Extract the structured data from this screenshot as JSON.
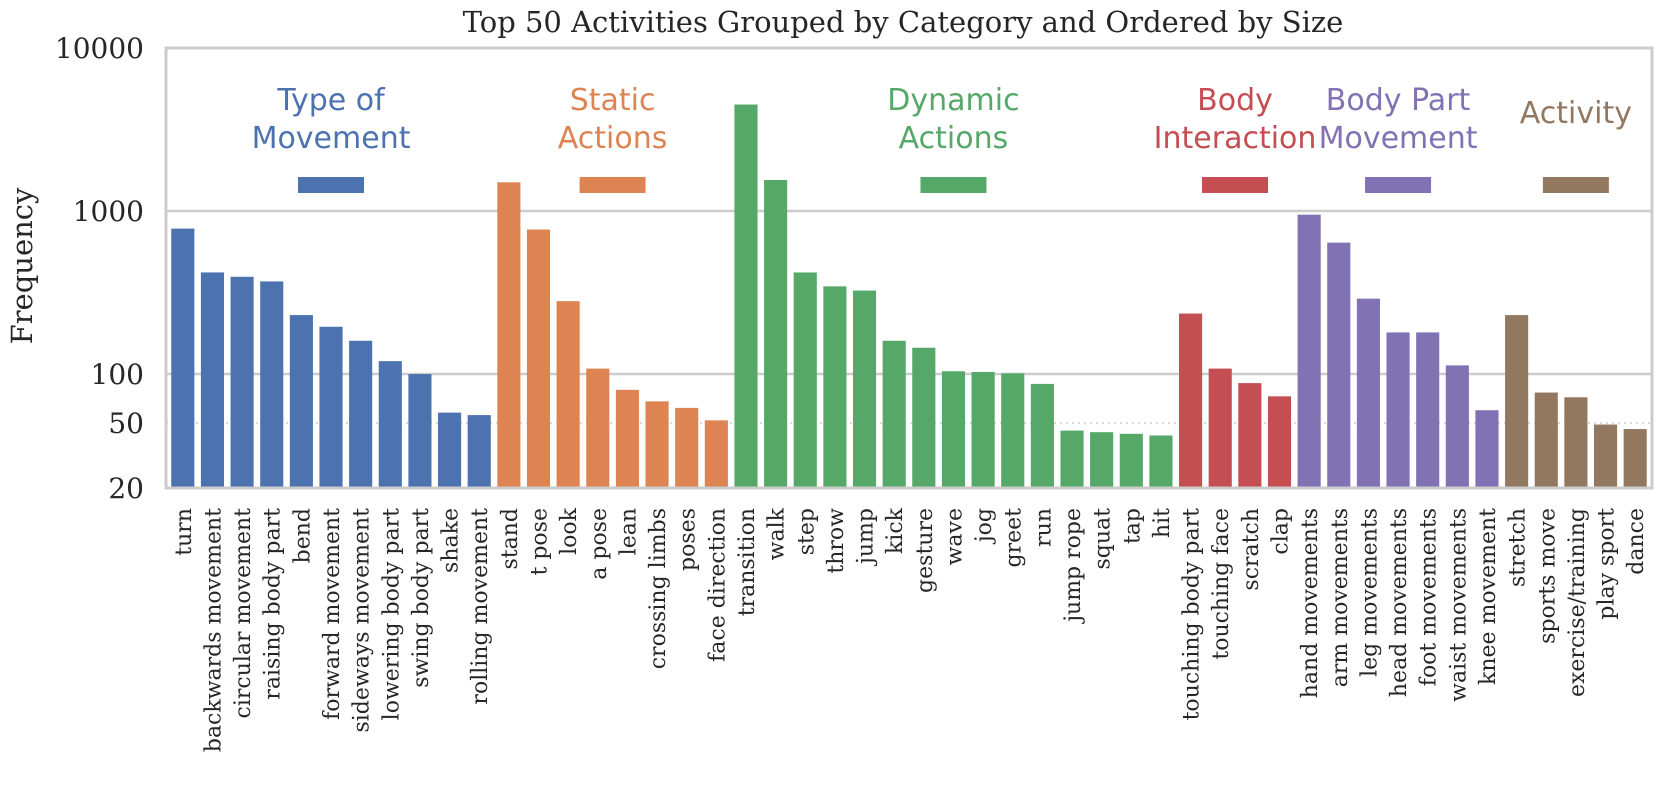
{
  "chart_data": {
    "type": "bar",
    "title": "Top 50 Activities Grouped by Category and Ordered by Size",
    "xlabel": "",
    "ylabel": "Frequency",
    "yscale": "log",
    "ylim": [
      20,
      10000
    ],
    "yticks": [
      {
        "value": 20,
        "label": "20"
      },
      {
        "value": 50,
        "label": "50"
      },
      {
        "value": 100,
        "label": "100"
      },
      {
        "value": 1000,
        "label": "1000"
      },
      {
        "value": 10000,
        "label": "10000"
      }
    ],
    "minor_gridlines": [
      50
    ],
    "grid": true,
    "categories": [
      {
        "name": "Type of Movement",
        "lines": [
          "Type of",
          "Movement"
        ],
        "color": "#4c72b0",
        "items": [
          {
            "label": "turn",
            "value": 780
          },
          {
            "label": "backwards movement",
            "value": 420
          },
          {
            "label": "circular movement",
            "value": 395
          },
          {
            "label": "raising body part",
            "value": 370
          },
          {
            "label": "bend",
            "value": 230
          },
          {
            "label": "forward movement",
            "value": 195
          },
          {
            "label": "sideways movement",
            "value": 160
          },
          {
            "label": "lowering body part",
            "value": 120
          },
          {
            "label": "swing body part",
            "value": 100
          },
          {
            "label": "shake",
            "value": 58
          },
          {
            "label": "rolling movement",
            "value": 56
          }
        ]
      },
      {
        "name": "Static Actions",
        "lines": [
          "Static",
          "Actions"
        ],
        "color": "#dd8452",
        "items": [
          {
            "label": "stand",
            "value": 1500
          },
          {
            "label": "t pose",
            "value": 770
          },
          {
            "label": "look",
            "value": 280
          },
          {
            "label": "a pose",
            "value": 108
          },
          {
            "label": "lean",
            "value": 80
          },
          {
            "label": "crossing limbs",
            "value": 68
          },
          {
            "label": "poses",
            "value": 62
          },
          {
            "label": "face direction",
            "value": 52
          }
        ]
      },
      {
        "name": "Dynamic Actions",
        "lines": [
          "Dynamic",
          "Actions"
        ],
        "color": "#55a868",
        "items": [
          {
            "label": "transition",
            "value": 4500
          },
          {
            "label": "walk",
            "value": 1550
          },
          {
            "label": "step",
            "value": 420
          },
          {
            "label": "throw",
            "value": 345
          },
          {
            "label": "jump",
            "value": 325
          },
          {
            "label": "kick",
            "value": 160
          },
          {
            "label": "gesture",
            "value": 145
          },
          {
            "label": "wave",
            "value": 104
          },
          {
            "label": "jog",
            "value": 103
          },
          {
            "label": "greet",
            "value": 101
          },
          {
            "label": "run",
            "value": 87
          },
          {
            "label": "jump rope",
            "value": 45
          },
          {
            "label": "squat",
            "value": 44
          },
          {
            "label": "tap",
            "value": 43
          },
          {
            "label": "hit",
            "value": 42
          }
        ]
      },
      {
        "name": "Body Interaction",
        "lines": [
          "Body",
          "Interaction"
        ],
        "color": "#c44e52",
        "items": [
          {
            "label": "touching body part",
            "value": 235
          },
          {
            "label": "touching face",
            "value": 108
          },
          {
            "label": "scratch",
            "value": 88
          },
          {
            "label": "clap",
            "value": 73
          }
        ]
      },
      {
        "name": "Body Part Movement",
        "lines": [
          "Body Part",
          "Movement"
        ],
        "color": "#8172b3",
        "items": [
          {
            "label": "hand movements",
            "value": 950
          },
          {
            "label": "arm movements",
            "value": 640
          },
          {
            "label": "leg movements",
            "value": 290
          },
          {
            "label": "head movements",
            "value": 180
          },
          {
            "label": "foot movements",
            "value": 180
          },
          {
            "label": "waist movements",
            "value": 113
          },
          {
            "label": "knee movement",
            "value": 60
          }
        ]
      },
      {
        "name": "Activity",
        "lines": [
          "Activity"
        ],
        "color": "#937860",
        "items": [
          {
            "label": "stretch",
            "value": 230
          },
          {
            "label": "sports move",
            "value": 77
          },
          {
            "label": "exercise/training",
            "value": 72
          },
          {
            "label": "play sport",
            "value": 49
          },
          {
            "label": "dance",
            "value": 46
          }
        ]
      }
    ]
  }
}
